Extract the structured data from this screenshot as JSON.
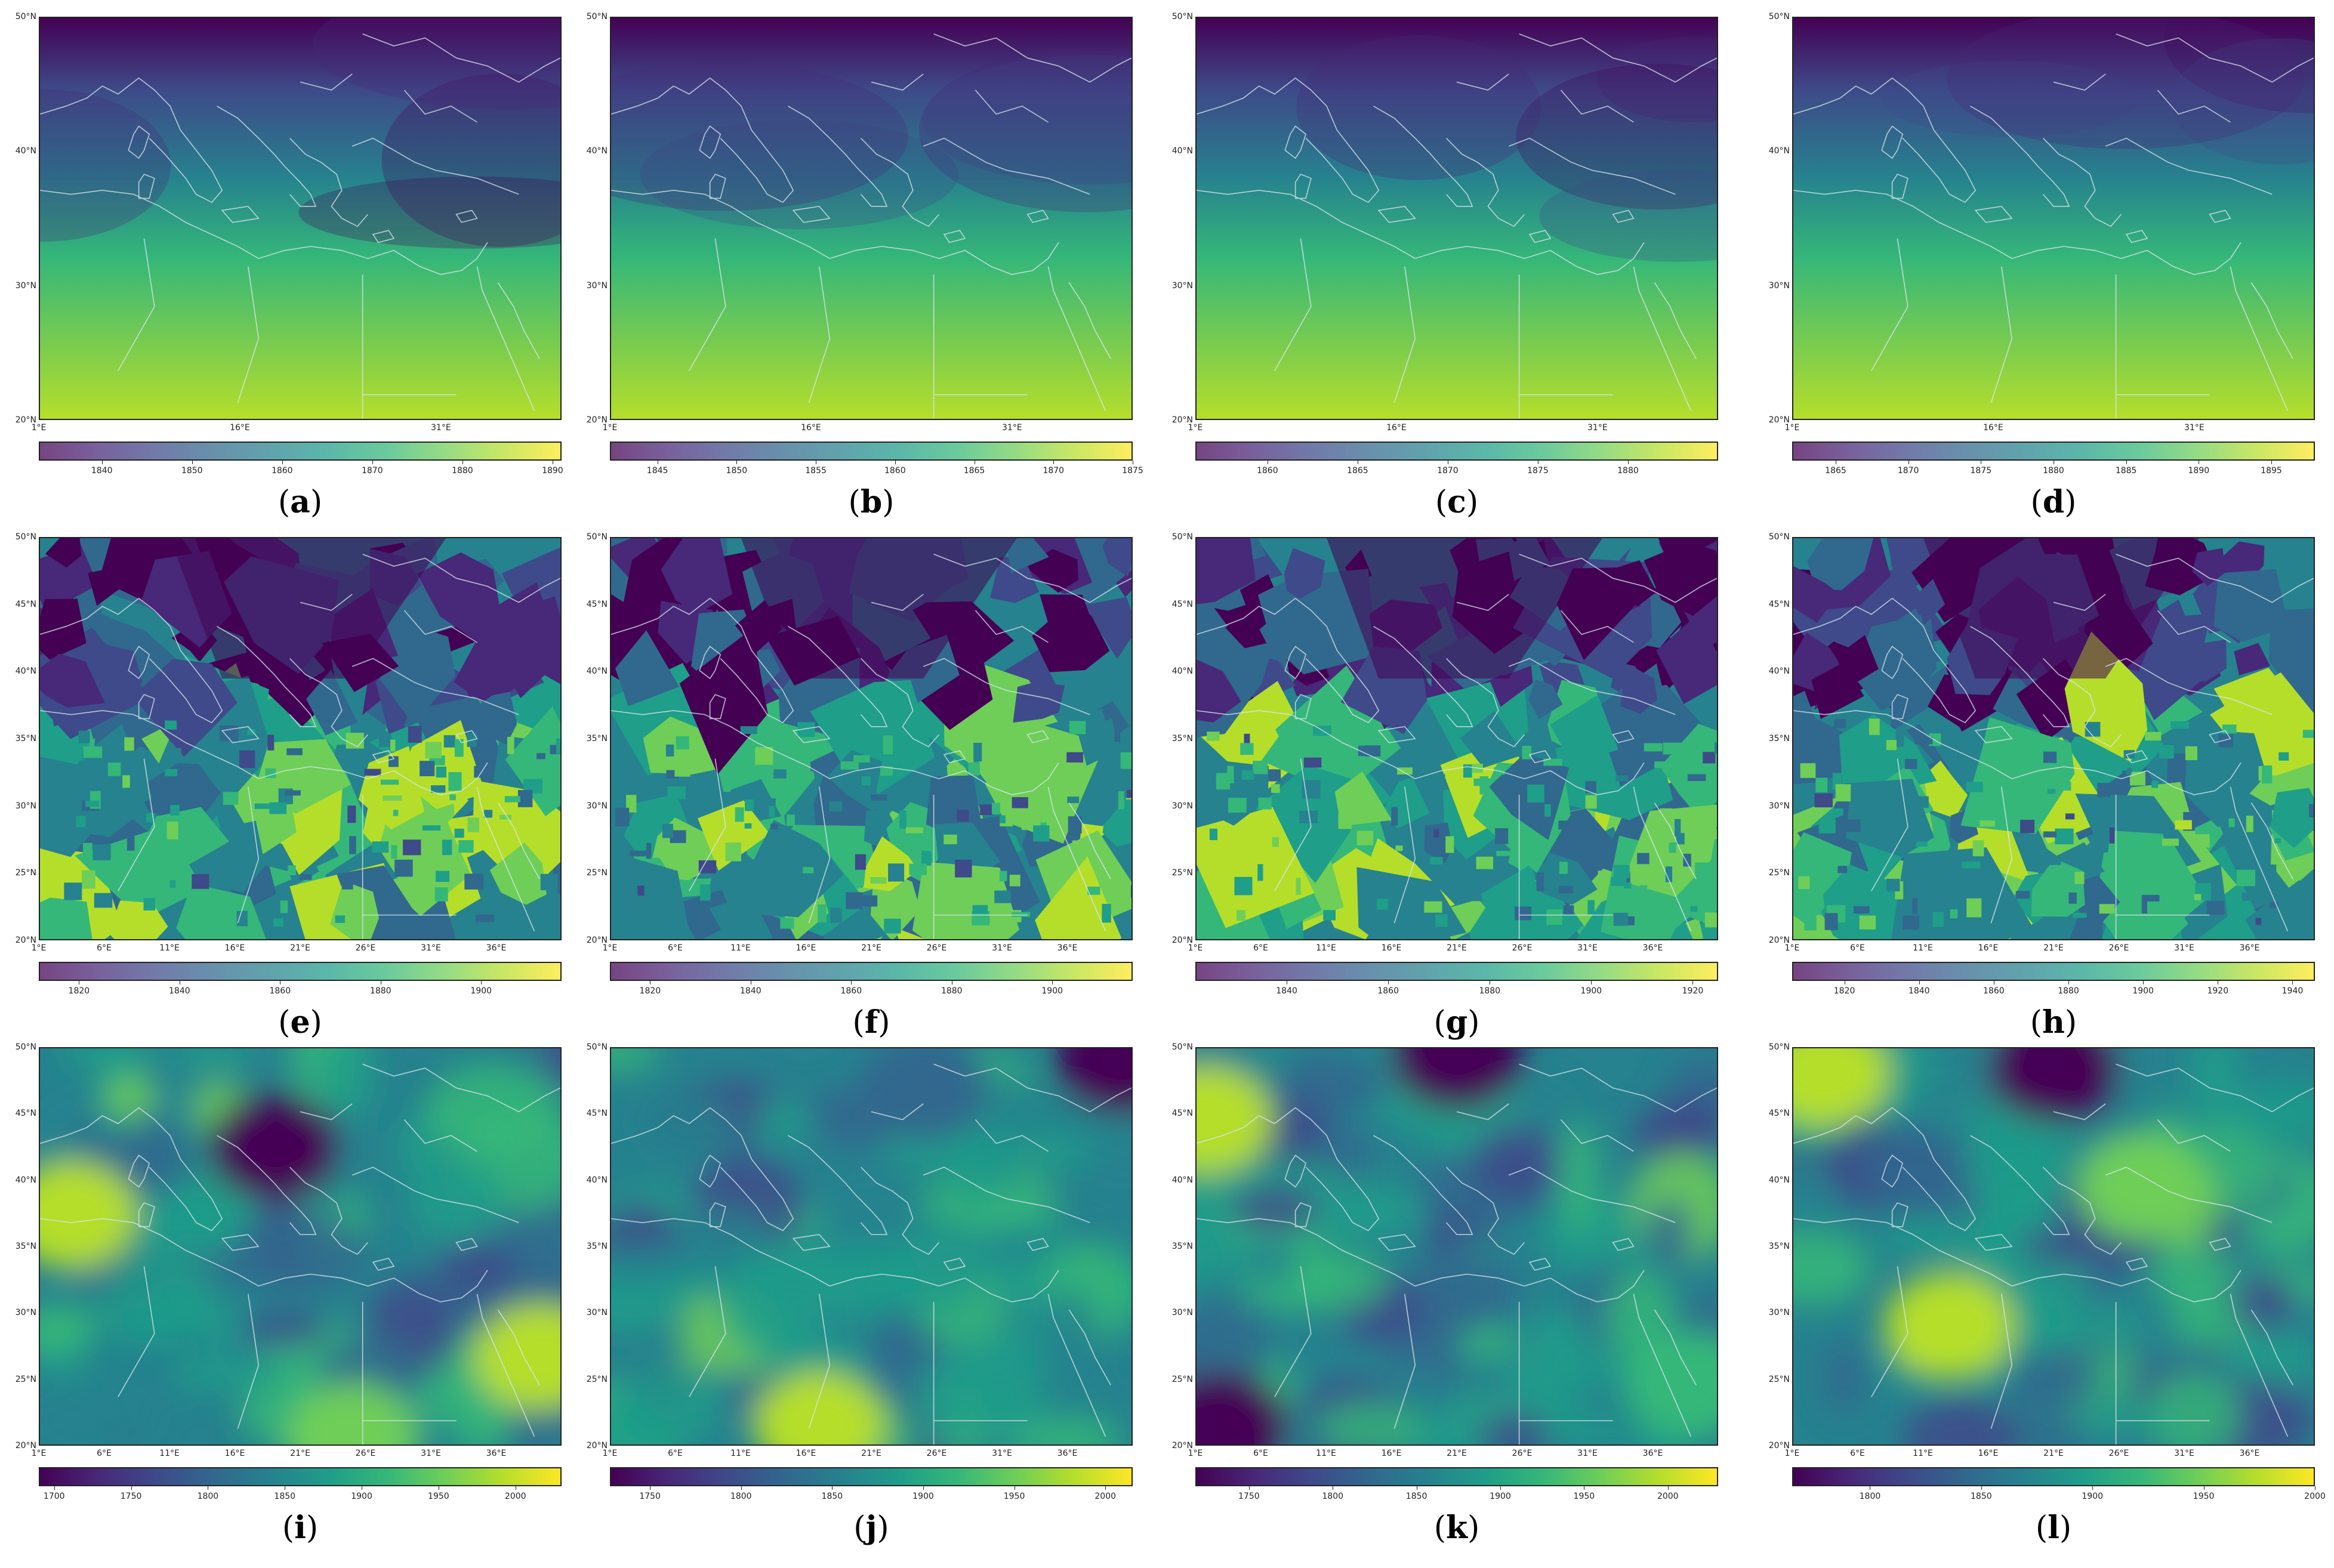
{
  "colors": {
    "viridis": [
      "#440154",
      "#482878",
      "#3e4a89",
      "#31688e",
      "#26828e",
      "#1f9e89",
      "#35b779",
      "#6ece58",
      "#b5de2b",
      "#fde725"
    ],
    "coastline": "#d9e6ee"
  },
  "axes": {
    "lat_ticks_coarse": [
      "50°N",
      "40°N",
      "30°N",
      "20°N"
    ],
    "lon_ticks_coarse": [
      "1°E",
      "16°E",
      "31°E"
    ],
    "lat_ticks_fine": [
      "50°N",
      "45°N",
      "40°N",
      "35°N",
      "30°N",
      "25°N",
      "20°N"
    ],
    "lon_ticks_fine": [
      "1°E",
      "6°E",
      "11°E",
      "16°E",
      "21°E",
      "26°E",
      "31°E",
      "36°E"
    ]
  },
  "panels": [
    {
      "letter": "a",
      "row": 0,
      "col": 0,
      "style": "smooth",
      "cmin": 1833,
      "cmax": 1891,
      "cticks": [
        "1840",
        "1850",
        "1860",
        "1870",
        "1880",
        "1890"
      ],
      "ctickvals": [
        1840,
        1850,
        1860,
        1870,
        1880,
        1890
      ]
    },
    {
      "letter": "b",
      "row": 0,
      "col": 1,
      "style": "smooth",
      "cmin": 1842,
      "cmax": 1875,
      "cticks": [
        "1845",
        "1850",
        "1855",
        "1860",
        "1865",
        "1870",
        "1875"
      ],
      "ctickvals": [
        1845,
        1850,
        1855,
        1860,
        1865,
        1870,
        1875
      ]
    },
    {
      "letter": "c",
      "row": 0,
      "col": 2,
      "style": "smooth",
      "cmin": 1856,
      "cmax": 1885,
      "cticks": [
        "1860",
        "1865",
        "1870",
        "1875",
        "1880"
      ],
      "ctickvals": [
        1860,
        1865,
        1870,
        1875,
        1880
      ]
    },
    {
      "letter": "d",
      "row": 0,
      "col": 3,
      "style": "smooth",
      "cmin": 1862,
      "cmax": 1898,
      "cticks": [
        "1865",
        "1870",
        "1875",
        "1880",
        "1885",
        "1890",
        "1895"
      ],
      "ctickvals": [
        1865,
        1870,
        1875,
        1880,
        1885,
        1890,
        1895
      ]
    },
    {
      "letter": "e",
      "row": 1,
      "col": 0,
      "style": "voronoi",
      "cmin": 1812,
      "cmax": 1916,
      "cticks": [
        "1820",
        "1840",
        "1860",
        "1880",
        "1900"
      ],
      "ctickvals": [
        1820,
        1840,
        1860,
        1880,
        1900
      ]
    },
    {
      "letter": "f",
      "row": 1,
      "col": 1,
      "style": "voronoi",
      "cmin": 1812,
      "cmax": 1916,
      "cticks": [
        "1820",
        "1840",
        "1860",
        "1880",
        "1900"
      ],
      "ctickvals": [
        1820,
        1840,
        1860,
        1880,
        1900
      ]
    },
    {
      "letter": "g",
      "row": 1,
      "col": 2,
      "style": "voronoi",
      "cmin": 1822,
      "cmax": 1925,
      "cticks": [
        "1840",
        "1860",
        "1880",
        "1900",
        "1920"
      ],
      "ctickvals": [
        1840,
        1860,
        1880,
        1900,
        1920
      ]
    },
    {
      "letter": "h",
      "row": 1,
      "col": 3,
      "style": "voronoi",
      "cmin": 1806,
      "cmax": 1946,
      "cticks": [
        "1820",
        "1840",
        "1860",
        "1880",
        "1900",
        "1920",
        "1940"
      ],
      "ctickvals": [
        1820,
        1840,
        1860,
        1880,
        1900,
        1920,
        1940
      ]
    },
    {
      "letter": "i",
      "row": 2,
      "col": 0,
      "style": "blobs",
      "cmin": 1690,
      "cmax": 2030,
      "cticks": [
        "1700",
        "1750",
        "1800",
        "1850",
        "1900",
        "1950",
        "2000"
      ],
      "ctickvals": [
        1700,
        1750,
        1800,
        1850,
        1900,
        1950,
        2000
      ]
    },
    {
      "letter": "j",
      "row": 2,
      "col": 1,
      "style": "blobs",
      "cmin": 1728,
      "cmax": 2015,
      "cticks": [
        "1750",
        "1800",
        "1850",
        "1900",
        "1950",
        "2000"
      ],
      "ctickvals": [
        1750,
        1800,
        1850,
        1900,
        1950,
        2000
      ]
    },
    {
      "letter": "k",
      "row": 2,
      "col": 2,
      "style": "blobs",
      "cmin": 1718,
      "cmax": 2030,
      "cticks": [
        "1750",
        "1800",
        "1850",
        "1900",
        "1950",
        "2000"
      ],
      "ctickvals": [
        1750,
        1800,
        1850,
        1900,
        1950,
        2000
      ]
    },
    {
      "letter": "l",
      "row": 2,
      "col": 3,
      "style": "blobs",
      "cmin": 1765,
      "cmax": 2000,
      "cticks": [
        "1800",
        "1850",
        "1900",
        "1950",
        "2000"
      ],
      "ctickvals": [
        1800,
        1850,
        1900,
        1950,
        2000
      ]
    }
  ]
}
